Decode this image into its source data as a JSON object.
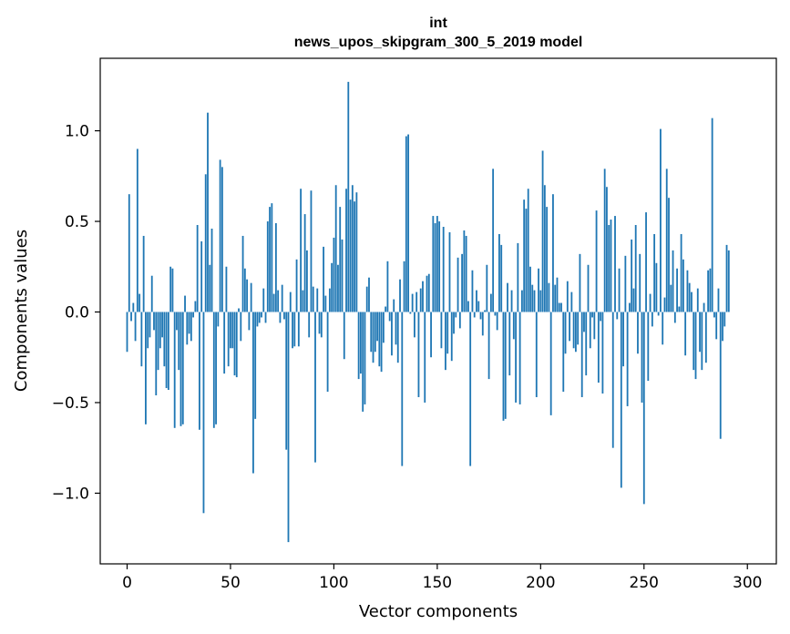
{
  "chart_data": {
    "type": "bar",
    "title_lines": [
      "int",
      "news_upos_skipgram_300_5_2019 model"
    ],
    "xlabel": "Vector components",
    "ylabel": "Components values",
    "xlim": [
      -13,
      314
    ],
    "ylim": [
      -1.39,
      1.4
    ],
    "xticks": [
      0,
      50,
      100,
      150,
      200,
      250,
      300
    ],
    "xtick_labels": [
      "0",
      "50",
      "100",
      "150",
      "200",
      "250",
      "300"
    ],
    "yticks": [
      -1.0,
      -0.5,
      0.0,
      0.5,
      1.0
    ],
    "ytick_labels": [
      "−1.0",
      "−0.5",
      "0.0",
      "0.5",
      "1.0"
    ],
    "bar_color": "#1f77b4",
    "grid": false,
    "values": [
      -0.22,
      0.65,
      -0.05,
      0.05,
      -0.16,
      0.9,
      0.1,
      -0.3,
      0.42,
      -0.62,
      -0.2,
      -0.14,
      0.2,
      -0.1,
      -0.46,
      -0.32,
      -0.2,
      -0.14,
      -0.3,
      -0.42,
      -0.43,
      0.25,
      0.24,
      -0.64,
      -0.1,
      -0.32,
      -0.63,
      -0.62,
      0.09,
      -0.18,
      -0.12,
      -0.16,
      -0.03,
      0.06,
      0.48,
      -0.65,
      0.39,
      -1.11,
      0.76,
      1.1,
      0.26,
      0.46,
      -0.64,
      -0.62,
      -0.08,
      0.84,
      0.8,
      -0.34,
      0.25,
      -0.3,
      -0.2,
      -0.2,
      -0.35,
      -0.36,
      0.02,
      -0.16,
      0.42,
      0.24,
      0.18,
      -0.1,
      0.16,
      -0.89,
      -0.59,
      -0.08,
      -0.06,
      -0.03,
      0.13,
      -0.06,
      0.5,
      0.58,
      0.6,
      0.1,
      0.49,
      0.12,
      -0.06,
      0.15,
      -0.04,
      -0.76,
      -1.27,
      0.11,
      -0.2,
      -0.19,
      0.29,
      -0.19,
      0.68,
      0.12,
      0.54,
      0.34,
      -0.14,
      0.67,
      0.14,
      -0.83,
      0.13,
      -0.12,
      -0.14,
      0.36,
      0.09,
      -0.44,
      0.13,
      0.27,
      0.41,
      0.7,
      0.26,
      0.58,
      0.4,
      -0.26,
      0.68,
      1.27,
      0.62,
      0.7,
      0.61,
      0.66,
      -0.37,
      -0.34,
      -0.55,
      -0.51,
      0.14,
      0.19,
      -0.22,
      -0.28,
      -0.22,
      -0.16,
      -0.3,
      -0.33,
      -0.17,
      0.03,
      0.28,
      -0.05,
      -0.24,
      0.07,
      -0.18,
      -0.28,
      0.18,
      -0.85,
      0.28,
      0.97,
      0.98,
      -0.01,
      0.1,
      -0.14,
      0.11,
      -0.47,
      0.13,
      0.17,
      -0.5,
      0.2,
      0.21,
      -0.25,
      0.53,
      0.49,
      0.53,
      0.5,
      -0.2,
      0.47,
      -0.32,
      -0.23,
      0.44,
      -0.27,
      -0.12,
      -0.03,
      0.3,
      -0.09,
      0.32,
      0.45,
      0.42,
      0.06,
      -0.85,
      0.23,
      -0.03,
      0.12,
      0.06,
      -0.04,
      -0.13,
      0.01,
      0.26,
      -0.37,
      0.1,
      0.79,
      -0.02,
      -0.1,
      0.43,
      0.37,
      -0.6,
      -0.59,
      0.16,
      -0.35,
      0.12,
      -0.15,
      -0.5,
      0.38,
      -0.51,
      0.12,
      0.62,
      0.57,
      0.68,
      0.25,
      0.15,
      0.12,
      -0.47,
      0.24,
      0.12,
      0.89,
      0.7,
      0.58,
      0.16,
      -0.57,
      0.65,
      0.15,
      0.19,
      0.05,
      0.05,
      -0.44,
      -0.23,
      0.17,
      -0.16,
      0.11,
      -0.2,
      -0.22,
      -0.18,
      0.32,
      -0.47,
      -0.11,
      -0.35,
      0.26,
      -0.2,
      -0.03,
      -0.15,
      0.56,
      -0.39,
      -0.05,
      -0.45,
      0.79,
      0.69,
      0.48,
      0.51,
      -0.75,
      0.53,
      -0.04,
      0.24,
      -0.97,
      -0.3,
      0.31,
      -0.52,
      0.05,
      0.4,
      0.13,
      0.48,
      -0.23,
      0.32,
      -0.5,
      -1.06,
      0.55,
      -0.38,
      0.1,
      -0.08,
      0.43,
      0.27,
      -0.02,
      1.01,
      -0.18,
      0.08,
      0.79,
      0.63,
      0.15,
      0.34,
      -0.06,
      0.24,
      0.03,
      0.43,
      0.29,
      -0.24,
      0.23,
      0.16,
      0.11,
      -0.32,
      -0.37,
      0.13,
      -0.22,
      -0.32,
      0.05,
      -0.28,
      0.23,
      0.24,
      1.07,
      -0.03,
      -0.15,
      0.13,
      -0.7,
      -0.16,
      -0.08,
      0.37,
      0.34
    ]
  }
}
